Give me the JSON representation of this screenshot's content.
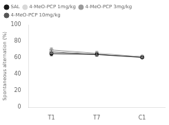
{
  "chart_data": {
    "type": "line",
    "categories": [
      "T1",
      "T7",
      "C1"
    ],
    "series": [
      {
        "name": "SAL",
        "color": "#1a1a1a",
        "values": [
          65.0,
          64.0,
          60.5
        ],
        "errors": [
          2.5,
          2.0,
          1.5
        ]
      },
      {
        "name": "4-MeO-PCP 1mg/kg",
        "color": "#d8d8d8",
        "values": [
          68.0,
          65.0,
          61.5
        ],
        "errors": [
          2.5,
          2.0,
          1.5
        ]
      },
      {
        "name": "4-MeO-PCP 3mg/kg",
        "color": "#999999",
        "values": [
          69.5,
          65.5,
          61.5
        ],
        "errors": [
          2.5,
          2.5,
          1.5
        ]
      },
      {
        "name": "4-MeO-PCP 10mg/kg",
        "color": "#555555",
        "values": [
          67.0,
          64.5,
          61.0
        ],
        "errors": [
          2.5,
          2.0,
          1.5
        ]
      }
    ],
    "ylabel": "Spontaneous alternation (%)",
    "ylim": [
      0,
      100
    ],
    "yticks": [
      0,
      20,
      40,
      60,
      80,
      100
    ],
    "grid": false,
    "legend": "upper left",
    "marker": "circle",
    "line_style": "solid"
  }
}
